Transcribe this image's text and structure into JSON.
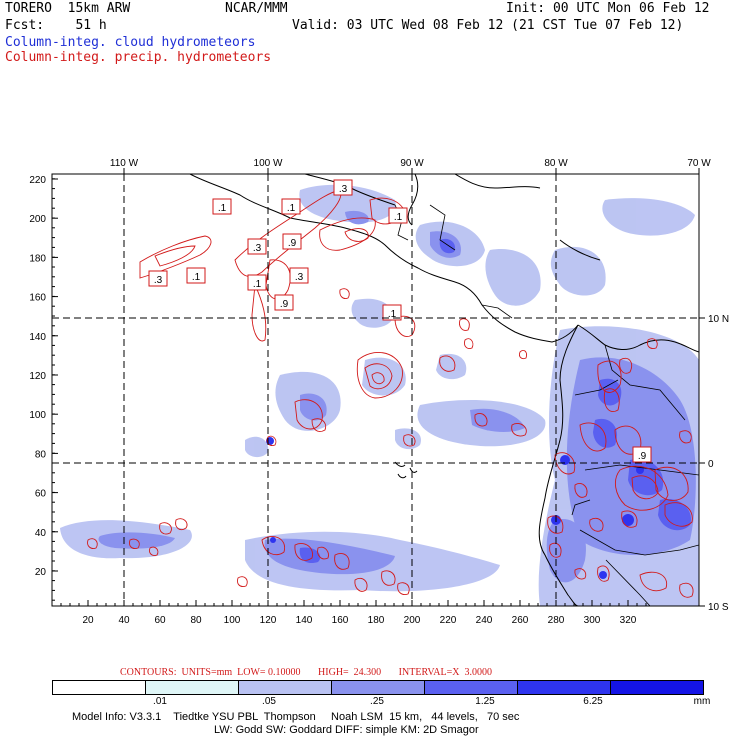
{
  "header": {
    "model": "TORERO  15km ARW",
    "org": "NCAR/MMM",
    "init": "Init: 00 UTC Mon 06 Feb 12",
    "fcst": "Fcst:    51 h",
    "valid": "Valid: 03 UTC Wed 08 Feb 12 (21 CST Tue 07 Feb 12)",
    "legend_cloud": "Column-integ. cloud hydrometeors",
    "legend_precip": "Column-integ. precip. hydrometeors",
    "colors": {
      "cloud": "#1f2fd6",
      "precip": "#d21a1a"
    }
  },
  "map": {
    "x_ticks": [
      "20",
      "40",
      "60",
      "80",
      "100",
      "120",
      "140",
      "160",
      "180",
      "200",
      "220",
      "240",
      "260",
      "280",
      "300",
      "320"
    ],
    "y_ticks": [
      "20",
      "40",
      "60",
      "80",
      "100",
      "120",
      "140",
      "160",
      "180",
      "200",
      "220"
    ],
    "lon_labels": [
      "110 W",
      "100 W",
      "90 W",
      "80 W",
      "70 W"
    ],
    "lat_labels": [
      "10 N",
      "0",
      "10 S"
    ],
    "contour_labels": [
      ".1",
      ".1",
      ".3",
      ".3",
      ".3",
      ".9",
      ".1",
      ".3",
      ".1",
      ".9",
      ".1",
      ".1",
      ".9"
    ]
  },
  "contour_info": "CONTOURS:  UNITS=mm  LOW= 0.10000       HIGH=  24.300       INTERVAL=X  3.0000",
  "colorbar": {
    "labels": [
      ".01",
      ".05",
      ".25",
      "1.25",
      "6.25"
    ],
    "unit": "mm",
    "colors": [
      "#ffffff",
      "#dff6f7",
      "#b9c2f2",
      "#8a92ee",
      "#5a60f0",
      "#2e34ef",
      "#1414e6"
    ]
  },
  "footer": {
    "line1": "Model Info: V3.3.1    Tiedtke YSU PBL  Thompson     Noah LSM  15 km,   44 levels,   70 sec",
    "line2": "LW: Godd SW: Goddard DIFF: simple KM: 2D Smagor"
  }
}
